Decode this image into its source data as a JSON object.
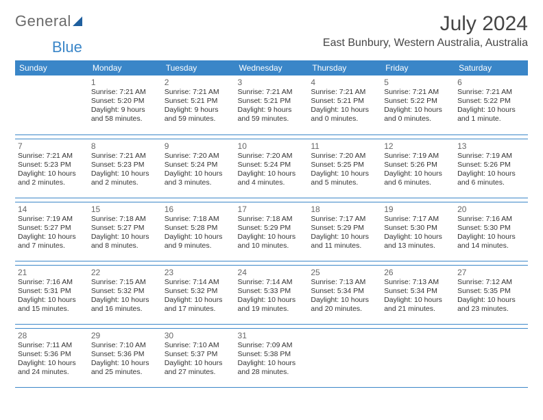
{
  "logo": {
    "text1": "General",
    "text2": "Blue"
  },
  "title": "July 2024",
  "location": "East Bunbury, Western Australia, Australia",
  "colors": {
    "header_bg": "#3a86c8",
    "header_text": "#ffffff",
    "row_border": "#3a86c8",
    "text": "#333333",
    "day_number": "#666666"
  },
  "day_headers": [
    "Sunday",
    "Monday",
    "Tuesday",
    "Wednesday",
    "Thursday",
    "Friday",
    "Saturday"
  ],
  "weeks": [
    [
      null,
      {
        "n": "1",
        "sunrise": "Sunrise: 7:21 AM",
        "sunset": "Sunset: 5:20 PM",
        "day1": "Daylight: 9 hours",
        "day2": "and 58 minutes."
      },
      {
        "n": "2",
        "sunrise": "Sunrise: 7:21 AM",
        "sunset": "Sunset: 5:21 PM",
        "day1": "Daylight: 9 hours",
        "day2": "and 59 minutes."
      },
      {
        "n": "3",
        "sunrise": "Sunrise: 7:21 AM",
        "sunset": "Sunset: 5:21 PM",
        "day1": "Daylight: 9 hours",
        "day2": "and 59 minutes."
      },
      {
        "n": "4",
        "sunrise": "Sunrise: 7:21 AM",
        "sunset": "Sunset: 5:21 PM",
        "day1": "Daylight: 10 hours",
        "day2": "and 0 minutes."
      },
      {
        "n": "5",
        "sunrise": "Sunrise: 7:21 AM",
        "sunset": "Sunset: 5:22 PM",
        "day1": "Daylight: 10 hours",
        "day2": "and 0 minutes."
      },
      {
        "n": "6",
        "sunrise": "Sunrise: 7:21 AM",
        "sunset": "Sunset: 5:22 PM",
        "day1": "Daylight: 10 hours",
        "day2": "and 1 minute."
      }
    ],
    [
      {
        "n": "7",
        "sunrise": "Sunrise: 7:21 AM",
        "sunset": "Sunset: 5:23 PM",
        "day1": "Daylight: 10 hours",
        "day2": "and 2 minutes."
      },
      {
        "n": "8",
        "sunrise": "Sunrise: 7:21 AM",
        "sunset": "Sunset: 5:23 PM",
        "day1": "Daylight: 10 hours",
        "day2": "and 2 minutes."
      },
      {
        "n": "9",
        "sunrise": "Sunrise: 7:20 AM",
        "sunset": "Sunset: 5:24 PM",
        "day1": "Daylight: 10 hours",
        "day2": "and 3 minutes."
      },
      {
        "n": "10",
        "sunrise": "Sunrise: 7:20 AM",
        "sunset": "Sunset: 5:24 PM",
        "day1": "Daylight: 10 hours",
        "day2": "and 4 minutes."
      },
      {
        "n": "11",
        "sunrise": "Sunrise: 7:20 AM",
        "sunset": "Sunset: 5:25 PM",
        "day1": "Daylight: 10 hours",
        "day2": "and 5 minutes."
      },
      {
        "n": "12",
        "sunrise": "Sunrise: 7:19 AM",
        "sunset": "Sunset: 5:26 PM",
        "day1": "Daylight: 10 hours",
        "day2": "and 6 minutes."
      },
      {
        "n": "13",
        "sunrise": "Sunrise: 7:19 AM",
        "sunset": "Sunset: 5:26 PM",
        "day1": "Daylight: 10 hours",
        "day2": "and 6 minutes."
      }
    ],
    [
      {
        "n": "14",
        "sunrise": "Sunrise: 7:19 AM",
        "sunset": "Sunset: 5:27 PM",
        "day1": "Daylight: 10 hours",
        "day2": "and 7 minutes."
      },
      {
        "n": "15",
        "sunrise": "Sunrise: 7:18 AM",
        "sunset": "Sunset: 5:27 PM",
        "day1": "Daylight: 10 hours",
        "day2": "and 8 minutes."
      },
      {
        "n": "16",
        "sunrise": "Sunrise: 7:18 AM",
        "sunset": "Sunset: 5:28 PM",
        "day1": "Daylight: 10 hours",
        "day2": "and 9 minutes."
      },
      {
        "n": "17",
        "sunrise": "Sunrise: 7:18 AM",
        "sunset": "Sunset: 5:29 PM",
        "day1": "Daylight: 10 hours",
        "day2": "and 10 minutes."
      },
      {
        "n": "18",
        "sunrise": "Sunrise: 7:17 AM",
        "sunset": "Sunset: 5:29 PM",
        "day1": "Daylight: 10 hours",
        "day2": "and 11 minutes."
      },
      {
        "n": "19",
        "sunrise": "Sunrise: 7:17 AM",
        "sunset": "Sunset: 5:30 PM",
        "day1": "Daylight: 10 hours",
        "day2": "and 13 minutes."
      },
      {
        "n": "20",
        "sunrise": "Sunrise: 7:16 AM",
        "sunset": "Sunset: 5:30 PM",
        "day1": "Daylight: 10 hours",
        "day2": "and 14 minutes."
      }
    ],
    [
      {
        "n": "21",
        "sunrise": "Sunrise: 7:16 AM",
        "sunset": "Sunset: 5:31 PM",
        "day1": "Daylight: 10 hours",
        "day2": "and 15 minutes."
      },
      {
        "n": "22",
        "sunrise": "Sunrise: 7:15 AM",
        "sunset": "Sunset: 5:32 PM",
        "day1": "Daylight: 10 hours",
        "day2": "and 16 minutes."
      },
      {
        "n": "23",
        "sunrise": "Sunrise: 7:14 AM",
        "sunset": "Sunset: 5:32 PM",
        "day1": "Daylight: 10 hours",
        "day2": "and 17 minutes."
      },
      {
        "n": "24",
        "sunrise": "Sunrise: 7:14 AM",
        "sunset": "Sunset: 5:33 PM",
        "day1": "Daylight: 10 hours",
        "day2": "and 19 minutes."
      },
      {
        "n": "25",
        "sunrise": "Sunrise: 7:13 AM",
        "sunset": "Sunset: 5:34 PM",
        "day1": "Daylight: 10 hours",
        "day2": "and 20 minutes."
      },
      {
        "n": "26",
        "sunrise": "Sunrise: 7:13 AM",
        "sunset": "Sunset: 5:34 PM",
        "day1": "Daylight: 10 hours",
        "day2": "and 21 minutes."
      },
      {
        "n": "27",
        "sunrise": "Sunrise: 7:12 AM",
        "sunset": "Sunset: 5:35 PM",
        "day1": "Daylight: 10 hours",
        "day2": "and 23 minutes."
      }
    ],
    [
      {
        "n": "28",
        "sunrise": "Sunrise: 7:11 AM",
        "sunset": "Sunset: 5:36 PM",
        "day1": "Daylight: 10 hours",
        "day2": "and 24 minutes."
      },
      {
        "n": "29",
        "sunrise": "Sunrise: 7:10 AM",
        "sunset": "Sunset: 5:36 PM",
        "day1": "Daylight: 10 hours",
        "day2": "and 25 minutes."
      },
      {
        "n": "30",
        "sunrise": "Sunrise: 7:10 AM",
        "sunset": "Sunset: 5:37 PM",
        "day1": "Daylight: 10 hours",
        "day2": "and 27 minutes."
      },
      {
        "n": "31",
        "sunrise": "Sunrise: 7:09 AM",
        "sunset": "Sunset: 5:38 PM",
        "day1": "Daylight: 10 hours",
        "day2": "and 28 minutes."
      },
      null,
      null,
      null
    ]
  ]
}
